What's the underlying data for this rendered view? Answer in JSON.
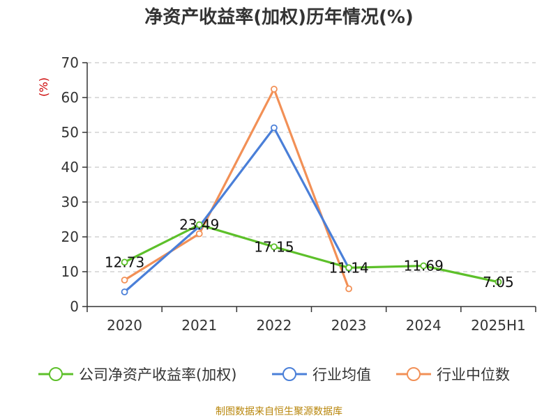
{
  "title": "净资产收益率(加权)历年情况(%)",
  "source": "制图数据来自恒生聚源数据库",
  "chart_data": {
    "type": "line",
    "categories": [
      "2020",
      "2021",
      "2022",
      "2023",
      "2024",
      "2025H1"
    ],
    "ylabel": "(%)",
    "ylim": [
      0,
      70
    ],
    "yticks": [
      0,
      10,
      20,
      30,
      40,
      50,
      60,
      70
    ],
    "grid": true,
    "legend_position": "bottom",
    "series": [
      {
        "name": "公司净资产收益率(加权)",
        "color": "#5dc02a",
        "values": [
          12.73,
          23.49,
          17.15,
          11.14,
          11.69,
          7.05
        ],
        "labels": [
          "12.73",
          "23.49",
          "17.15",
          "11.14",
          "11.69",
          "7.05"
        ]
      },
      {
        "name": "行业均值",
        "color": "#4a7fd8",
        "values": [
          4.2,
          23.0,
          51.3,
          11.0,
          null,
          null
        ]
      },
      {
        "name": "行业中位数",
        "color": "#f29056",
        "values": [
          7.6,
          20.9,
          62.4,
          5.1,
          null,
          null
        ]
      }
    ]
  }
}
